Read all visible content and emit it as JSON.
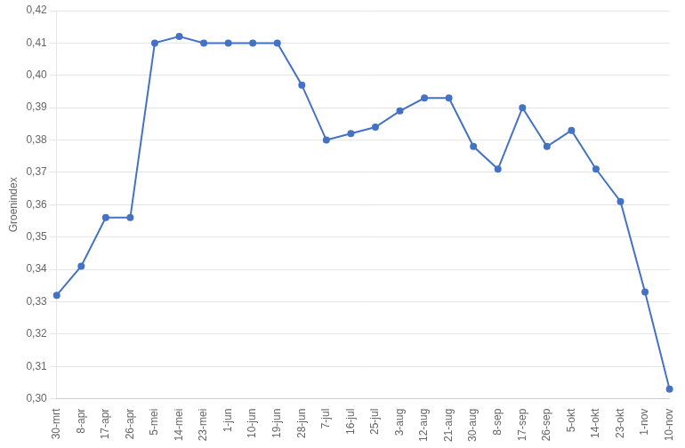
{
  "chart_data": {
    "type": "line",
    "ylabel": "Groenindex",
    "categories": [
      "30-mrt",
      "8-apr",
      "17-apr",
      "26-apr",
      "5-mei",
      "14-mei",
      "23-mei",
      "1-jun",
      "10-jun",
      "19-jun",
      "28-jun",
      "7-jul",
      "16-jul",
      "25-jul",
      "3-aug",
      "12-aug",
      "21-aug",
      "30-aug",
      "8-sep",
      "17-sep",
      "26-sep",
      "5-okt",
      "14-okt",
      "23-okt",
      "1-nov",
      "10-nov"
    ],
    "values": [
      0.332,
      0.341,
      0.356,
      0.356,
      0.41,
      0.412,
      0.41,
      0.41,
      0.41,
      0.41,
      0.397,
      0.38,
      0.382,
      0.384,
      0.389,
      0.393,
      0.393,
      0.378,
      0.371,
      0.39,
      0.378,
      0.383,
      0.371,
      0.361,
      0.333,
      0.303
    ],
    "color": "#4472C4",
    "marker": "circle",
    "ylim": [
      0.3,
      0.42
    ],
    "yticks": [
      {
        "value": 0.3,
        "label": "0,30"
      },
      {
        "value": 0.31,
        "label": "0,31"
      },
      {
        "value": 0.32,
        "label": "0,32"
      },
      {
        "value": 0.33,
        "label": "0,33"
      },
      {
        "value": 0.34,
        "label": "0,34"
      },
      {
        "value": 0.35,
        "label": "0,35"
      },
      {
        "value": 0.36,
        "label": "0,36"
      },
      {
        "value": 0.37,
        "label": "0,37"
      },
      {
        "value": 0.38,
        "label": "0,38"
      },
      {
        "value": 0.39,
        "label": "0,39"
      },
      {
        "value": 0.4,
        "label": "0,40"
      },
      {
        "value": 0.41,
        "label": "0,41"
      },
      {
        "value": 0.42,
        "label": "0,42"
      }
    ],
    "grid": true
  }
}
